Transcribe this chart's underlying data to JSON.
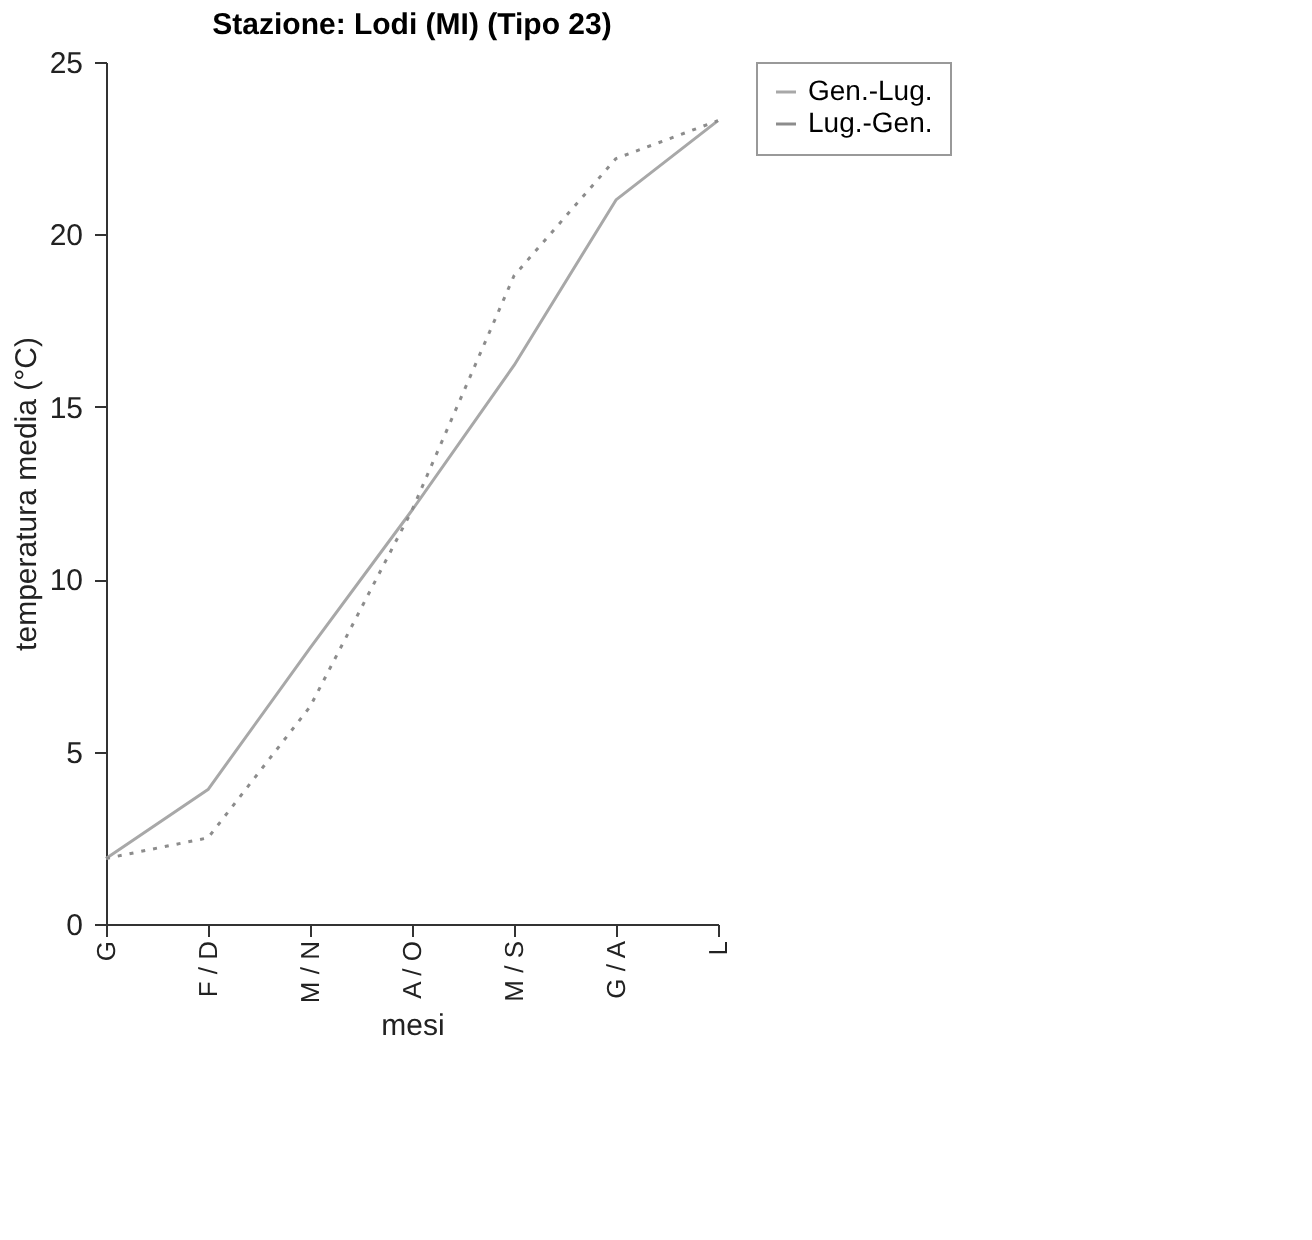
{
  "chart_data": {
    "type": "line",
    "title": "Stazione: Lodi (MI)    (Tipo 23)",
    "xlabel": "mesi",
    "ylabel": "temperatura media (°C)",
    "categories": [
      "G",
      "F / D",
      "M / N",
      "A / O",
      "M / S",
      "G / A",
      "L"
    ],
    "series": [
      {
        "name": "Gen.-Lug.",
        "color": "#a8a8a8",
        "line_style": "solid",
        "values": [
          1.9,
          3.9,
          8.0,
          12.0,
          16.2,
          21.0,
          23.3
        ]
      },
      {
        "name": "Lug.-Gen.",
        "color": "#8c8c8c",
        "line_style": "dotted",
        "values": [
          1.9,
          2.5,
          6.3,
          12.0,
          18.8,
          22.2,
          23.3
        ]
      }
    ],
    "ylim": [
      0,
      25
    ],
    "yticks": [
      0,
      5,
      10,
      15,
      20,
      25
    ],
    "grid": false,
    "legend": "right",
    "marker": "none"
  }
}
